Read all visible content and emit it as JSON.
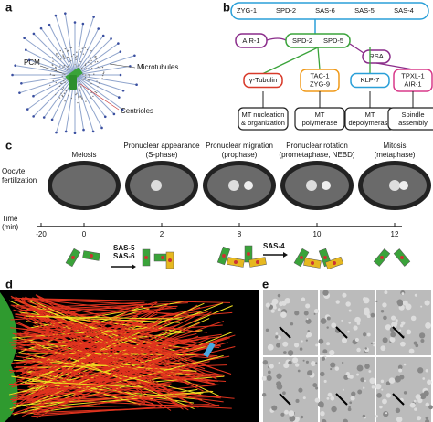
{
  "panel_a": {
    "label": "a",
    "pcm": "PCM",
    "microtubules": "Microtubules",
    "centrioles": "Centrioles"
  },
  "panel_b": {
    "label": "b",
    "top": [
      "ZYG-1",
      "SPD-2",
      "SAS-6",
      "SAS-5",
      "SAS-4"
    ],
    "air1": "AIR-1",
    "spd": [
      "SPD-2",
      "SPD-5"
    ],
    "rsa": "RSA",
    "effectors": [
      [
        "γ-Tubulin"
      ],
      [
        "TAC-1",
        "ZYG-9"
      ],
      [
        "KLP-7"
      ],
      [
        "TPXL-1",
        "AIR-1"
      ]
    ],
    "functions": [
      [
        "MT nucleation",
        "& organization"
      ],
      [
        "MT",
        "polymerase"
      ],
      [
        "MT",
        "depolymerase"
      ],
      [
        "Spindle",
        "assembly"
      ]
    ]
  },
  "panel_c": {
    "label": "c",
    "start": [
      "Oocyte",
      "fertilization"
    ],
    "stages": [
      [
        "Meiosis"
      ],
      [
        "Pronuclear appearance",
        "(S-phase)"
      ],
      [
        "Pronuclear migration",
        "(prophase)"
      ],
      [
        "Pronuclear rotation",
        "(prometaphase, NEBD)"
      ],
      [
        "Mitosis",
        "(metaphase)"
      ]
    ],
    "time_label": [
      "Time",
      "(min)"
    ],
    "times": [
      -20,
      0,
      2,
      8,
      10,
      12
    ],
    "step1": [
      "SAS-5",
      "SAS-6"
    ],
    "step2": "SAS-4"
  },
  "panel_d": {
    "label": "d"
  },
  "panel_e": {
    "label": "e"
  }
}
